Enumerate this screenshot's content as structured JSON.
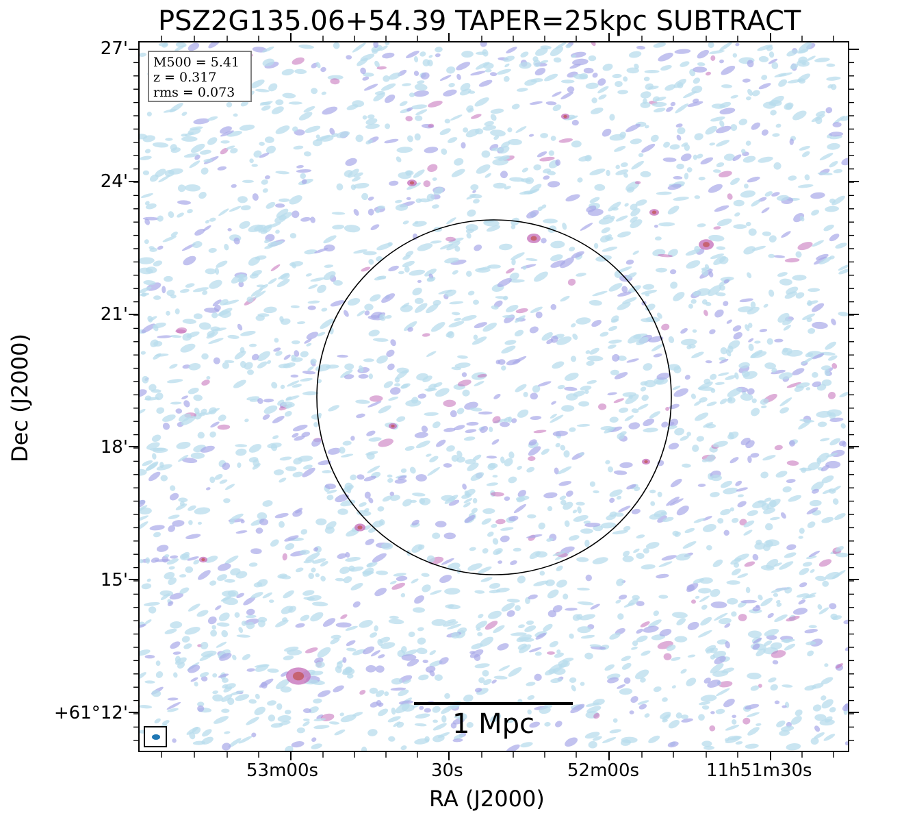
{
  "title": "PSZ2G135.06+54.39 TAPER=25kpc SUBTRACT",
  "xlabel": "RA (J2000)",
  "ylabel": "Dec (J2000)",
  "x_ticks": [
    "53m00s",
    "30s",
    "52m00s",
    "11h51m30s"
  ],
  "y_ticks": [
    "27'",
    "24'",
    "21'",
    "18'",
    "15'",
    "+61°12'"
  ],
  "info": {
    "m500": "M500 = 5.41",
    "z": "z = 0.317",
    "rms": "rms = 0.073"
  },
  "scalebar_label": "1 Mpc",
  "colors": {
    "light": "#b8dcec",
    "mid": "#a8a8e8",
    "strong": "#c36bb8",
    "peak": "#c0504d"
  }
}
